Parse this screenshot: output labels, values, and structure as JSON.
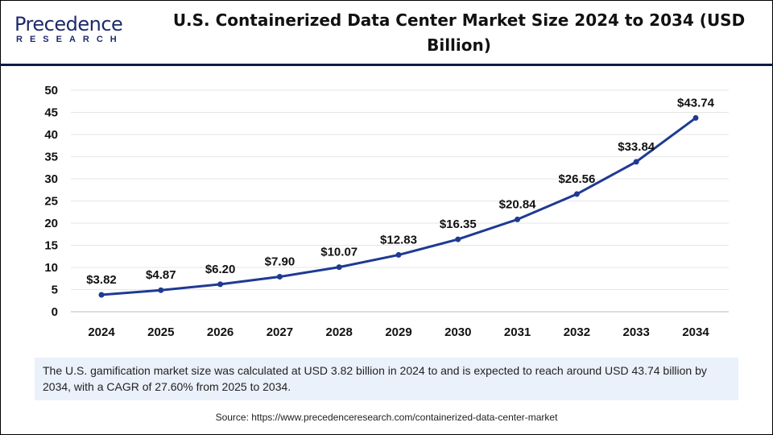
{
  "logo": {
    "text": "Precedence",
    "sub": "RESEARCH"
  },
  "chart_data": {
    "type": "line",
    "title": "U.S. Containerized Data Center Market Size 2024 to 2034 (USD Billion)",
    "categories": [
      "2024",
      "2025",
      "2026",
      "2027",
      "2028",
      "2029",
      "2030",
      "2031",
      "2032",
      "2033",
      "2034"
    ],
    "values": [
      3.82,
      4.87,
      6.2,
      7.9,
      10.07,
      12.83,
      16.35,
      20.84,
      26.56,
      33.84,
      43.74
    ],
    "data_labels": [
      "$3.82",
      "$4.87",
      "$6.20",
      "$7.90",
      "$10.07",
      "$12.83",
      "$16.35",
      "$20.84",
      "$26.56",
      "$33.84",
      "$43.74"
    ],
    "yticks": [
      0,
      5,
      10,
      15,
      20,
      25,
      30,
      35,
      40,
      45,
      50
    ],
    "ylim": [
      0,
      50
    ],
    "grid": true,
    "xlabel": "",
    "ylabel": "",
    "line_color": "#1f3a93"
  },
  "info_text": "The U.S. gamification market size was calculated at USD 3.82 billion in 2024 to and is expected to reach around USD 43.74 billion by 2034, with a CAGR of 27.60% from 2025 to 2034.",
  "source": "Source: https://www.precedenceresearch.com/containerized-data-center-market"
}
